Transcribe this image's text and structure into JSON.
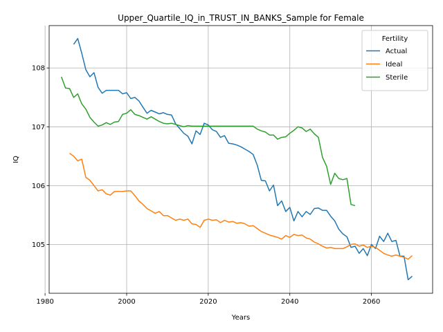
{
  "chart_data": {
    "type": "line",
    "title": "Upper_Quartile_IQ_in_TRUST_IN_BANKS_Sample for Female",
    "xlabel": "Years",
    "ylabel": "IQ",
    "xlim": [
      1981,
      2075
    ],
    "ylim": [
      104.17,
      108.72
    ],
    "xticks": [
      1980,
      2000,
      2020,
      2040,
      2060
    ],
    "yticks": [
      105,
      106,
      107,
      108
    ],
    "grid": true,
    "legend": {
      "title": "Fertility",
      "position": "top-right"
    },
    "series": [
      {
        "name": "Actual",
        "color": "#1f77b4",
        "x": [
          1987,
          1988,
          1989,
          1990,
          1991,
          1992,
          1993,
          1994,
          1995,
          1996,
          1997,
          1998,
          1999,
          2000,
          2001,
          2002,
          2003,
          2004,
          2005,
          2006,
          2007,
          2008,
          2009,
          2010,
          2011,
          2012,
          2013,
          2014,
          2015,
          2016,
          2017,
          2018,
          2019,
          2020,
          2021,
          2022,
          2023,
          2024,
          2025,
          2026,
          2027,
          2028,
          2029,
          2030,
          2031,
          2032,
          2033,
          2034,
          2035,
          2036,
          2037,
          2038,
          2039,
          2040,
          2041,
          2042,
          2043,
          2044,
          2045,
          2046,
          2047,
          2048,
          2049,
          2050,
          2051,
          2052,
          2053,
          2054,
          2055,
          2056,
          2057,
          2058,
          2059,
          2060,
          2061,
          2062,
          2063,
          2064,
          2065,
          2066,
          2067,
          2068,
          2069,
          2070
        ],
        "values": [
          108.4,
          108.5,
          108.25,
          107.97,
          107.85,
          107.92,
          107.67,
          107.57,
          107.62,
          107.62,
          107.62,
          107.62,
          107.56,
          107.58,
          107.48,
          107.5,
          107.44,
          107.33,
          107.23,
          107.28,
          107.25,
          107.22,
          107.24,
          107.21,
          107.2,
          107.05,
          106.97,
          106.89,
          106.84,
          106.71,
          106.93,
          106.87,
          107.06,
          107.03,
          106.95,
          106.92,
          106.82,
          106.85,
          106.72,
          106.71,
          106.69,
          106.66,
          106.62,
          106.58,
          106.53,
          106.35,
          106.09,
          106.08,
          105.91,
          106.01,
          105.66,
          105.74,
          105.56,
          105.63,
          105.4,
          105.56,
          105.47,
          105.56,
          105.51,
          105.61,
          105.62,
          105.58,
          105.58,
          105.48,
          105.4,
          105.26,
          105.18,
          105.13,
          104.95,
          104.97,
          104.85,
          104.93,
          104.81,
          105.0,
          104.93,
          105.14,
          105.05,
          105.19,
          105.05,
          105.07,
          104.8,
          104.8,
          104.4,
          104.46
        ]
      },
      {
        "name": "Ideal",
        "color": "#ff7f0e",
        "x": [
          1986,
          1987,
          1988,
          1989,
          1990,
          1991,
          1992,
          1993,
          1994,
          1995,
          1996,
          1997,
          1998,
          1999,
          2000,
          2001,
          2002,
          2003,
          2004,
          2005,
          2006,
          2007,
          2008,
          2009,
          2010,
          2011,
          2012,
          2013,
          2014,
          2015,
          2016,
          2017,
          2018,
          2019,
          2020,
          2021,
          2022,
          2023,
          2024,
          2025,
          2026,
          2027,
          2028,
          2029,
          2030,
          2031,
          2032,
          2033,
          2034,
          2035,
          2036,
          2037,
          2038,
          2039,
          2040,
          2041,
          2042,
          2043,
          2044,
          2045,
          2046,
          2047,
          2048,
          2049,
          2050,
          2051,
          2052,
          2053,
          2054,
          2055,
          2056,
          2057,
          2058,
          2059,
          2060,
          2061,
          2062,
          2063,
          2064,
          2065,
          2066,
          2067,
          2068,
          2069,
          2070
        ],
        "values": [
          106.55,
          106.5,
          106.42,
          106.45,
          106.14,
          106.09,
          106.0,
          105.91,
          105.93,
          105.86,
          105.84,
          105.9,
          105.9,
          105.9,
          105.91,
          105.91,
          105.83,
          105.74,
          105.68,
          105.61,
          105.57,
          105.53,
          105.56,
          105.49,
          105.49,
          105.45,
          105.41,
          105.43,
          105.41,
          105.43,
          105.35,
          105.34,
          105.29,
          105.41,
          105.43,
          105.41,
          105.42,
          105.37,
          105.41,
          105.38,
          105.39,
          105.36,
          105.37,
          105.35,
          105.31,
          105.32,
          105.27,
          105.22,
          105.19,
          105.16,
          105.14,
          105.12,
          105.09,
          105.15,
          105.12,
          105.17,
          105.15,
          105.16,
          105.11,
          105.09,
          105.04,
          105.01,
          104.97,
          104.94,
          104.95,
          104.93,
          104.93,
          104.93,
          104.96,
          105.0,
          105.01,
          104.97,
          104.99,
          104.95,
          104.97,
          104.95,
          104.9,
          104.85,
          104.82,
          104.8,
          104.82,
          104.8,
          104.78,
          104.75,
          104.81
        ]
      },
      {
        "name": "Sterile",
        "color": "#2ca02c",
        "x": [
          1984,
          1985,
          1986,
          1987,
          1988,
          1989,
          1990,
          1991,
          1992,
          1993,
          1994,
          1995,
          1996,
          1997,
          1998,
          1999,
          2000,
          2001,
          2002,
          2003,
          2004,
          2005,
          2006,
          2007,
          2008,
          2009,
          2010,
          2011,
          2012,
          2013,
          2014,
          2015,
          2016,
          2017,
          2018,
          2019,
          2020,
          2021,
          2022,
          2023,
          2024,
          2025,
          2026,
          2027,
          2028,
          2029,
          2030,
          2031,
          2032,
          2033,
          2034,
          2035,
          2036,
          2037,
          2038,
          2039,
          2040,
          2041,
          2042,
          2043,
          2044,
          2045,
          2046,
          2047,
          2048,
          2049,
          2050,
          2051,
          2052,
          2053,
          2054,
          2055,
          2056
        ],
        "values": [
          107.85,
          107.66,
          107.65,
          107.5,
          107.56,
          107.39,
          107.3,
          107.16,
          107.08,
          107.01,
          107.03,
          107.07,
          107.04,
          107.08,
          107.09,
          107.21,
          107.23,
          107.29,
          107.21,
          107.19,
          107.16,
          107.13,
          107.17,
          107.13,
          107.09,
          107.06,
          107.05,
          107.06,
          107.04,
          107.02,
          107.0,
          107.02,
          107.01,
          107.01,
          107.01,
          107.01,
          107.01,
          107.01,
          107.01,
          107.01,
          107.01,
          107.01,
          107.01,
          107.01,
          107.01,
          107.01,
          107.01,
          107.01,
          106.96,
          106.93,
          106.91,
          106.86,
          106.86,
          106.79,
          106.82,
          106.83,
          106.89,
          106.94,
          107.0,
          106.98,
          106.92,
          106.96,
          106.88,
          106.82,
          106.48,
          106.33,
          106.02,
          106.21,
          106.12,
          106.1,
          106.12,
          105.68,
          105.66
        ]
      }
    ]
  }
}
